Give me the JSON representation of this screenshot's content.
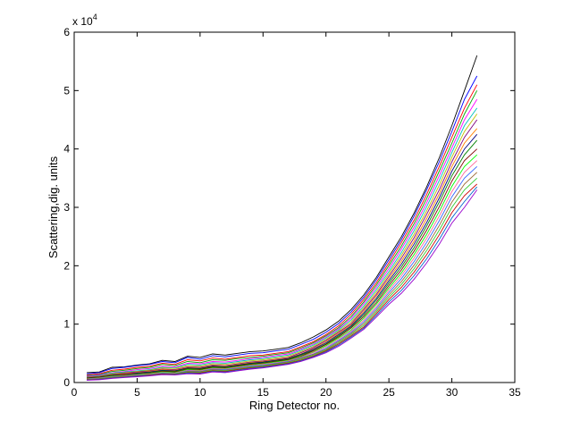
{
  "chart_data": {
    "type": "line",
    "xlabel": "Ring Detector no.",
    "ylabel": "Scattering,dig. units",
    "xlim": [
      0,
      35
    ],
    "ylim": [
      0,
      60000
    ],
    "x_ticks": [
      0,
      5,
      10,
      15,
      20,
      25,
      30,
      35
    ],
    "y_ticks": [
      0,
      1,
      2,
      3,
      4,
      5,
      6
    ],
    "y_tick_labels": [
      "0",
      "1",
      "2",
      "3",
      "4",
      "5",
      "6"
    ],
    "y_multiplier_label": "x 10",
    "y_multiplier_exponent": "4",
    "grid": false,
    "legend": "none",
    "x": [
      1,
      2,
      3,
      4,
      5,
      6,
      7,
      8,
      9,
      10,
      11,
      12,
      13,
      14,
      15,
      16,
      17,
      18,
      19,
      20,
      21,
      22,
      23,
      24,
      25,
      26,
      27,
      28,
      29,
      30,
      31,
      32
    ],
    "series": [
      {
        "values": [
          1700,
          1800,
          2600,
          2700,
          3000,
          3200,
          3800,
          3600,
          4500,
          4300,
          4900,
          4700,
          5000,
          5300,
          5400,
          5700,
          6000,
          6800,
          7800,
          9000,
          10500,
          12500,
          15000,
          18000,
          21500,
          25000,
          29000,
          33500,
          38500,
          44000,
          50000,
          56000
        ],
        "color": "#000000"
      },
      {
        "values": [
          1500,
          1700,
          2400,
          2600,
          2900,
          3100,
          3600,
          3400,
          4300,
          4000,
          4600,
          4400,
          4700,
          5000,
          5100,
          5400,
          5700,
          6500,
          7400,
          8600,
          10100,
          12100,
          14600,
          17600,
          21000,
          24500,
          28500,
          33000,
          37800,
          43000,
          48500,
          52500
        ],
        "color": "#0000ff"
      },
      {
        "values": [
          1300,
          1500,
          2100,
          2300,
          2600,
          2800,
          3300,
          3100,
          3900,
          3700,
          4200,
          4000,
          4300,
          4600,
          4700,
          5000,
          5300,
          6100,
          7000,
          8200,
          9700,
          11700,
          14200,
          17100,
          20500,
          24000,
          27800,
          32200,
          37000,
          42000,
          47000,
          51000
        ],
        "color": "#ff0000"
      },
      {
        "values": [
          1200,
          1400,
          1900,
          2100,
          2400,
          2600,
          3100,
          2900,
          3600,
          3400,
          3900,
          3800,
          4100,
          4300,
          4500,
          4800,
          5100,
          5900,
          6800,
          8000,
          9400,
          11300,
          13800,
          16700,
          20000,
          23400,
          27200,
          31500,
          36200,
          41000,
          46000,
          50000
        ],
        "color": "#00aa00"
      },
      {
        "values": [
          1100,
          1300,
          1700,
          1900,
          2200,
          2400,
          2800,
          2700,
          3300,
          3200,
          3600,
          3500,
          3800,
          4100,
          4300,
          4600,
          4900,
          5700,
          6600,
          7800,
          9200,
          11000,
          13500,
          16300,
          19500,
          22900,
          26600,
          30800,
          35400,
          40200,
          45000,
          48500
        ],
        "color": "#ff00ff"
      },
      {
        "values": [
          1000,
          1200,
          1600,
          1800,
          2000,
          2200,
          2600,
          2500,
          3100,
          3000,
          3400,
          3300,
          3600,
          3900,
          4100,
          4400,
          4700,
          5500,
          6400,
          7600,
          9000,
          10700,
          13100,
          15900,
          19000,
          22300,
          26000,
          30100,
          34600,
          39400,
          44000,
          47000
        ],
        "color": "#00bfbf"
      },
      {
        "values": [
          950,
          1100,
          1500,
          1700,
          1900,
          2100,
          2500,
          2400,
          2900,
          2800,
          3200,
          3100,
          3400,
          3700,
          3900,
          4200,
          4500,
          5300,
          6200,
          7400,
          8800,
          10400,
          12800,
          15500,
          18600,
          21800,
          25400,
          29400,
          33800,
          38600,
          43000,
          46000
        ],
        "color": "#bfbf00"
      },
      {
        "values": [
          900,
          1050,
          1400,
          1600,
          1800,
          2000,
          2300,
          2200,
          2700,
          2600,
          3000,
          2900,
          3200,
          3500,
          3700,
          4000,
          4300,
          5100,
          6000,
          7200,
          8600,
          10100,
          12500,
          15100,
          18200,
          21300,
          24800,
          28800,
          33000,
          37800,
          42000,
          45000
        ],
        "color": "#7f007f"
      },
      {
        "values": [
          850,
          1000,
          1300,
          1500,
          1700,
          1900,
          2200,
          2100,
          2600,
          2500,
          2900,
          2800,
          3100,
          3400,
          3600,
          3900,
          4200,
          4900,
          5800,
          7000,
          8400,
          9900,
          12200,
          14800,
          17800,
          20800,
          24200,
          28100,
          32300,
          37000,
          41000,
          43500
        ],
        "color": "#ff7f00"
      },
      {
        "values": [
          800,
          950,
          1250,
          1400,
          1600,
          1800,
          2100,
          2000,
          2500,
          2400,
          2800,
          2700,
          3000,
          3300,
          3500,
          3800,
          4100,
          4800,
          5700,
          6800,
          8200,
          9700,
          11900,
          14400,
          17400,
          20300,
          23700,
          27400,
          31600,
          36200,
          40000,
          42500
        ],
        "color": "#000080"
      },
      {
        "values": [
          750,
          900,
          1200,
          1350,
          1500,
          1700,
          2000,
          1900,
          2400,
          2300,
          2700,
          2600,
          2900,
          3200,
          3400,
          3700,
          4000,
          4700,
          5500,
          6600,
          8000,
          9500,
          11600,
          14100,
          17000,
          19800,
          23100,
          26800,
          30900,
          35400,
          39000,
          41500
        ],
        "color": "#008000"
      },
      {
        "values": [
          700,
          850,
          1100,
          1300,
          1450,
          1600,
          1900,
          1800,
          2300,
          2200,
          2600,
          2500,
          2800,
          3100,
          3300,
          3600,
          3900,
          4500,
          5400,
          6500,
          7800,
          9300,
          11300,
          13700,
          16600,
          19300,
          22500,
          26100,
          30100,
          34500,
          38000,
          40000
        ],
        "color": "#800000"
      },
      {
        "values": [
          650,
          800,
          1050,
          1200,
          1400,
          1550,
          1800,
          1700,
          2200,
          2100,
          2500,
          2400,
          2700,
          3000,
          3200,
          3500,
          3800,
          4400,
          5200,
          6300,
          7600,
          9000,
          11000,
          13400,
          16200,
          18800,
          21900,
          25400,
          29300,
          33600,
          37000,
          39000
        ],
        "color": "#00ff00"
      },
      {
        "values": [
          600,
          750,
          1000,
          1150,
          1300,
          1450,
          1700,
          1600,
          2100,
          2000,
          2400,
          2300,
          2600,
          2900,
          3100,
          3400,
          3700,
          4300,
          5100,
          6100,
          7400,
          8800,
          10700,
          13000,
          15800,
          18300,
          21300,
          24700,
          28500,
          32700,
          36000,
          38000
        ],
        "color": "#ff6699"
      },
      {
        "values": [
          550,
          700,
          950,
          1100,
          1250,
          1400,
          1600,
          1550,
          2000,
          1900,
          2300,
          2200,
          2500,
          2800,
          3000,
          3300,
          3600,
          4200,
          4900,
          5900,
          7200,
          8600,
          10400,
          12700,
          15400,
          17800,
          20700,
          24000,
          27700,
          31800,
          35000,
          37000
        ],
        "color": "#3366ff"
      },
      {
        "values": [
          500,
          650,
          900,
          1050,
          1200,
          1350,
          1550,
          1500,
          1900,
          1850,
          2200,
          2100,
          2400,
          2700,
          2900,
          3200,
          3500,
          4100,
          4800,
          5700,
          7000,
          8400,
          10100,
          12400,
          15000,
          17300,
          20100,
          23300,
          26900,
          30900,
          34000,
          36000
        ],
        "color": "#996633"
      },
      {
        "values": [
          480,
          600,
          850,
          1000,
          1150,
          1300,
          1500,
          1450,
          1800,
          1750,
          2100,
          2000,
          2300,
          2600,
          2800,
          3100,
          3400,
          3950,
          4650,
          5550,
          6800,
          8200,
          9800,
          12100,
          14600,
          16800,
          19500,
          22600,
          26100,
          30000,
          33000,
          35000
        ],
        "color": "#33cc33"
      },
      {
        "values": [
          450,
          560,
          800,
          950,
          1100,
          1250,
          1450,
          1400,
          1700,
          1650,
          2000,
          1900,
          2200,
          2500,
          2700,
          3000,
          3300,
          3800,
          4500,
          5400,
          6600,
          8000,
          9500,
          11800,
          14200,
          16300,
          18900,
          21900,
          25300,
          29100,
          32000,
          34000
        ],
        "color": "#cc0000"
      },
      {
        "values": [
          420,
          520,
          750,
          900,
          1050,
          1200,
          1400,
          1350,
          1600,
          1550,
          1900,
          1800,
          2100,
          2400,
          2600,
          2900,
          3200,
          3700,
          4400,
          5250,
          6400,
          7800,
          9300,
          11500,
          13800,
          15800,
          18300,
          21200,
          24500,
          28200,
          31000,
          33500
        ],
        "color": "#0066cc"
      },
      {
        "values": [
          400,
          480,
          700,
          850,
          1000,
          1150,
          1350,
          1300,
          1500,
          1450,
          1800,
          1700,
          2000,
          2300,
          2500,
          2800,
          3100,
          3600,
          4300,
          5100,
          6200,
          7600,
          9100,
          11200,
          13400,
          15300,
          17700,
          20500,
          23700,
          27300,
          30000,
          33000
        ],
        "color": "#9900cc"
      }
    ]
  }
}
